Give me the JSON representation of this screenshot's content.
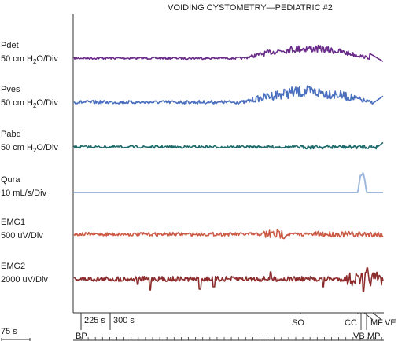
{
  "chart_data": {
    "type": "line",
    "title": "VOIDING CYSTOMETRY—PEDIATRIC #2",
    "xaxis": {
      "scale_label": "75 s",
      "tick_labels": [
        "225 s",
        "300 s"
      ],
      "grid": false
    },
    "channels": [
      {
        "name": "Pdet",
        "scale_prefix": "50 cm H",
        "scale_sub": "2",
        "scale_suffix": "O/Div",
        "color": "#6a2c8a"
      },
      {
        "name": "Pves",
        "scale_prefix": "50 cm H",
        "scale_sub": "2",
        "scale_suffix": "O/Div",
        "color": "#4a6fbf"
      },
      {
        "name": "Pabd",
        "scale_prefix": "50 cm H",
        "scale_sub": "2",
        "scale_suffix": "O/Div",
        "color": "#1f6b6b"
      },
      {
        "name": "Qura",
        "scale_prefix": "10 mL/s/Div",
        "scale_sub": "",
        "scale_suffix": "",
        "color": "#9db8dd"
      },
      {
        "name": "EMG1",
        "scale_prefix": "500 uV/Div",
        "scale_sub": "",
        "scale_suffix": "",
        "color": "#cc5a45"
      },
      {
        "name": "EMG2",
        "scale_prefix": "2000 uV/Div",
        "scale_sub": "",
        "scale_suffix": "",
        "color": "#8c2c2c"
      }
    ],
    "event_markers": [
      "BP",
      "SO",
      "CC",
      "VB",
      "MP",
      "MF",
      "VE"
    ]
  }
}
